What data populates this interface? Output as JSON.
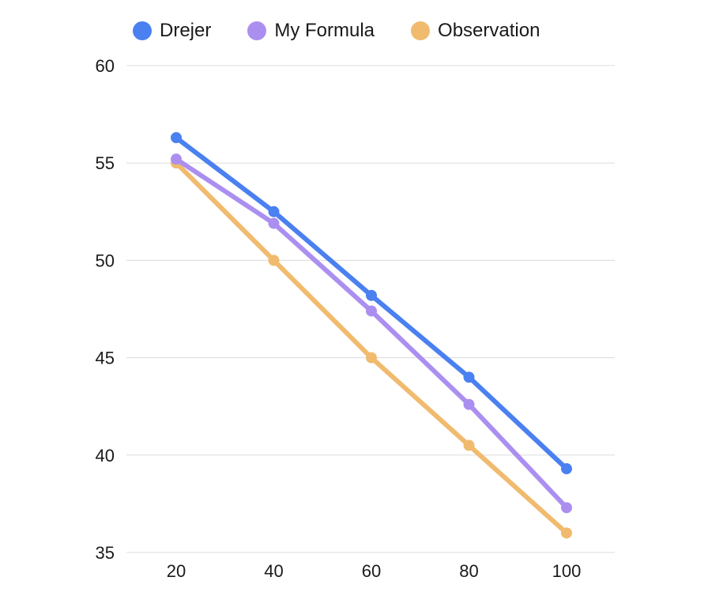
{
  "chart_data": {
    "type": "line",
    "title": "",
    "xlabel": "",
    "ylabel": "",
    "x": [
      20,
      40,
      60,
      80,
      100
    ],
    "x_ticks": [
      "20",
      "40",
      "60",
      "80",
      "100"
    ],
    "ylim": [
      35,
      60
    ],
    "y_ticks": [
      "35",
      "40",
      "45",
      "50",
      "55",
      "60"
    ],
    "grid": "horizontal",
    "legend_position": "top-left",
    "series": [
      {
        "name": "Drejer",
        "color": "#4a80f0",
        "values": [
          56.3,
          52.5,
          48.2,
          44.0,
          39.3
        ]
      },
      {
        "name": "My Formula",
        "color": "#ab8ff0",
        "values": [
          55.2,
          51.9,
          47.4,
          42.6,
          37.3
        ]
      },
      {
        "name": "Observation",
        "color": "#f0bb6e",
        "values": [
          55.0,
          50.0,
          45.0,
          40.5,
          36.0
        ]
      }
    ]
  }
}
